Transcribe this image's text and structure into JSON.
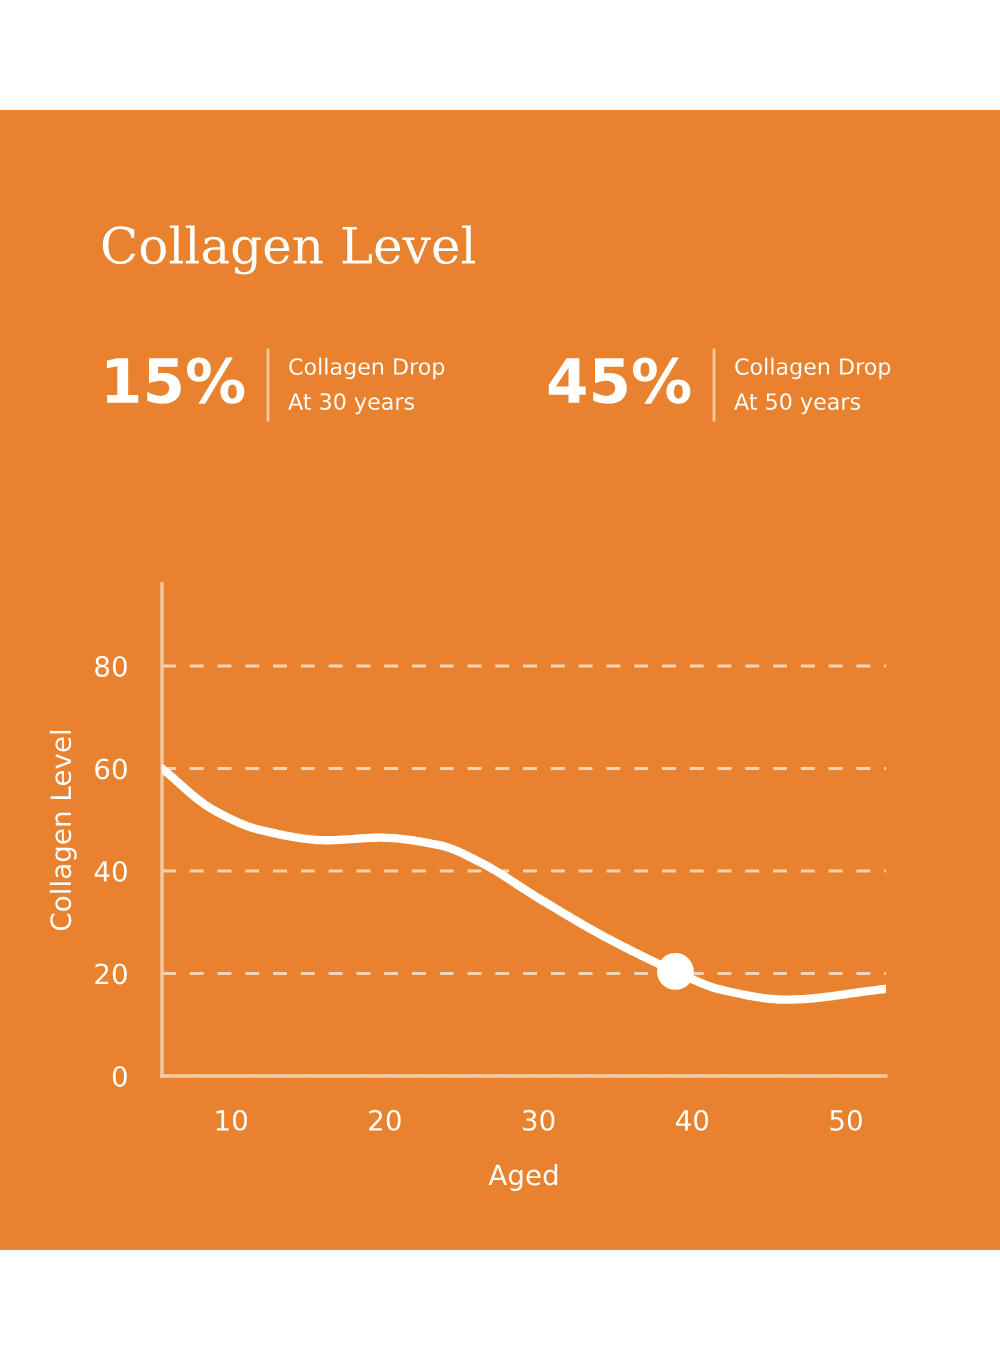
{
  "chart_data": {
    "type": "line",
    "title": "Collagen Level",
    "xlabel": "Aged",
    "ylabel": "Collagen Level",
    "annotations": [
      "15%",
      "Collagen Drop\nAt 30 years",
      "45%",
      "Collagen Drop\nAt 50 years"
    ],
    "series": [
      {
        "color": "#ffffff",
        "marker": "none",
        "x": [
          5.5,
          8.8,
          11.9,
          16.2,
          19.7,
          23.6,
          26.2,
          30.1,
          34.4,
          38.9,
          41.8,
          46.1,
          52.6
        ],
        "values": [
          60,
          52,
          48,
          46,
          46.5,
          45,
          41.7,
          34.5,
          27,
          20.4,
          16.9,
          14.9,
          17
        ]
      },
      {
        "type": "scatter",
        "marker": "circle",
        "color": "#ffffff",
        "x": [
          38.9
        ],
        "values": [
          20.4
        ]
      }
    ],
    "xlim": [
      5.5,
      52.6
    ],
    "ylim": [
      0,
      96
    ],
    "xticks": [
      10,
      20,
      30,
      40,
      50
    ],
    "yticks": [
      0,
      20,
      40,
      60,
      80
    ],
    "grid": "y",
    "legend": false,
    "line_style": "solid"
  }
}
